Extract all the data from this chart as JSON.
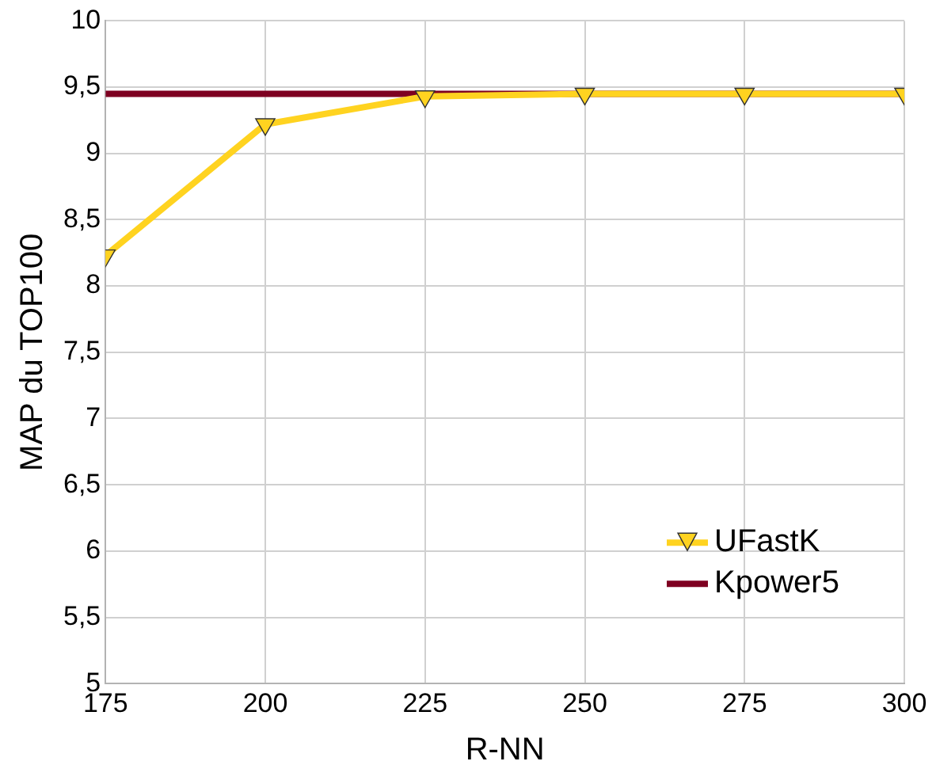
{
  "chart_data": {
    "type": "line",
    "xlabel": "R-NN",
    "ylabel": "MAP du TOP100",
    "x": [
      175,
      200,
      225,
      250,
      275,
      300
    ],
    "series": [
      {
        "name": "UFastK",
        "color": "#ffd320",
        "values": [
          8.23,
          9.22,
          9.43,
          9.45,
          9.45,
          9.45
        ],
        "marker": "triangle"
      },
      {
        "name": "Kpower5",
        "color": "#7e0021",
        "values": [
          9.45,
          9.45,
          9.45,
          9.45,
          9.45,
          9.45
        ],
        "marker": "none"
      }
    ],
    "xlim": [
      175,
      300
    ],
    "xticks": [
      175,
      200,
      225,
      250,
      275,
      300
    ],
    "ylim": [
      5,
      10
    ],
    "yticks": [
      5,
      {
        "value": 5.5,
        "label": "5,5"
      },
      6,
      {
        "value": 6.5,
        "label": "6,5"
      },
      7,
      {
        "value": 7.5,
        "label": "7,5"
      },
      8,
      {
        "value": 8.5,
        "label": "8,5"
      },
      9,
      {
        "value": 9.5,
        "label": "9,5"
      },
      10
    ],
    "grid": true,
    "legend": "bottom right"
  }
}
